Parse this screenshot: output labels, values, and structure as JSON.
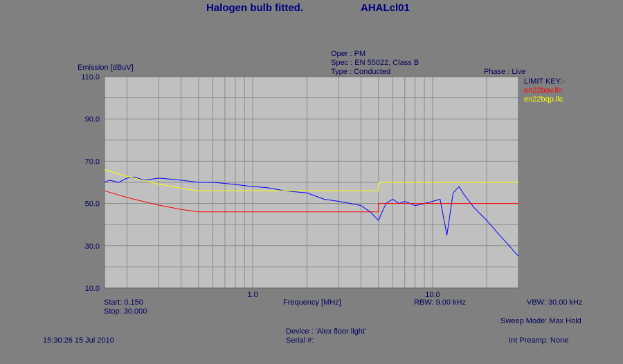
{
  "header": {
    "title": "Halogen bulb fitted.",
    "file_id": "AHALcl01"
  },
  "test_info": {
    "oper": "Oper : PM",
    "spec": "Spec : EN 55022, Class B",
    "type": "Type : Conducted",
    "phase": "Phase : Live"
  },
  "limit_key": {
    "title": "LIMIT KEY:-",
    "items": [
      {
        "label": "en22bav.llc",
        "color": "#ff0000"
      },
      {
        "label": "en22bqp.llc",
        "color": "#ffff00"
      }
    ]
  },
  "footer": {
    "start": "Start: 0.150",
    "stop": "Stop: 30.000",
    "rbw": "RBW: 9.00 kHz",
    "vbw": "VBW: 30.00 kHz",
    "sweep_mode": "Sweep Mode: Max Hold",
    "timestamp": "15:30:26 15 Jul 2010",
    "device": "Device : 'Alex floor light'",
    "serial": "Serial #:",
    "preamp": "Int Preamp: None"
  },
  "colors": {
    "background": "#808080",
    "plot_area": "#c0c0c0",
    "grid": "#8a8a8a",
    "text": "#00005e",
    "trace": "#0000ff",
    "avg_limit": "#ff0000",
    "qp_limit": "#ffff00"
  },
  "chart_data": {
    "type": "line",
    "ylabel": "Emission [dBuV]",
    "xlabel": "Frequency [MHz]",
    "xscale": "log",
    "xlim": [
      0.15,
      30.0
    ],
    "ylim": [
      10.0,
      110.0
    ],
    "y_ticks": [
      "110.0",
      "90.0",
      "70.0",
      "50.0",
      "30.0",
      "10.0"
    ],
    "x_ticks": [
      "1.0",
      "10.0"
    ],
    "grid": true,
    "series": [
      {
        "name": "en22bav.llc",
        "color": "#ff0000",
        "x": [
          0.15,
          0.2,
          0.3,
          0.4,
          0.5,
          0.7,
          1.0,
          2.0,
          3.0,
          4.99,
          5.0,
          30.0
        ],
        "y": [
          56.0,
          52.8,
          49.2,
          47.2,
          46.0,
          46.0,
          46.0,
          46.0,
          46.0,
          46.0,
          50.0,
          50.0
        ]
      },
      {
        "name": "en22bqp.llc",
        "color": "#ffff00",
        "x": [
          0.15,
          0.2,
          0.3,
          0.4,
          0.5,
          0.7,
          1.0,
          2.0,
          3.0,
          4.99,
          5.0,
          30.0
        ],
        "y": [
          66.0,
          62.8,
          59.2,
          57.2,
          56.0,
          56.0,
          56.0,
          56.0,
          56.0,
          56.0,
          60.0,
          60.0
        ]
      },
      {
        "name": "",
        "color": "#0000ff",
        "x": [
          0.15,
          0.16,
          0.18,
          0.2,
          0.22,
          0.25,
          0.3,
          0.35,
          0.4,
          0.5,
          0.6,
          0.7,
          0.8,
          1.0,
          1.2,
          1.5,
          2.0,
          2.5,
          3.0,
          3.5,
          4.0,
          4.5,
          5.0,
          5.5,
          6.0,
          6.5,
          7.0,
          8.0,
          9.0,
          10.0,
          11.0,
          12.0,
          13.0,
          14.0,
          15.0,
          17.0,
          20.0,
          23.0,
          26.0,
          30.0
        ],
        "y": [
          60.0,
          61.0,
          60.0,
          62.0,
          62.5,
          61.0,
          62.0,
          61.5,
          61.0,
          60.0,
          60.0,
          59.5,
          59.0,
          58.0,
          57.5,
          56.0,
          55.0,
          52.0,
          51.0,
          50.0,
          49.0,
          46.0,
          42.0,
          50.0,
          52.0,
          50.0,
          51.0,
          49.0,
          50.0,
          51.0,
          52.0,
          35.0,
          55.0,
          58.0,
          54.0,
          48.0,
          42.0,
          36.0,
          31.0,
          25.0
        ]
      }
    ]
  }
}
